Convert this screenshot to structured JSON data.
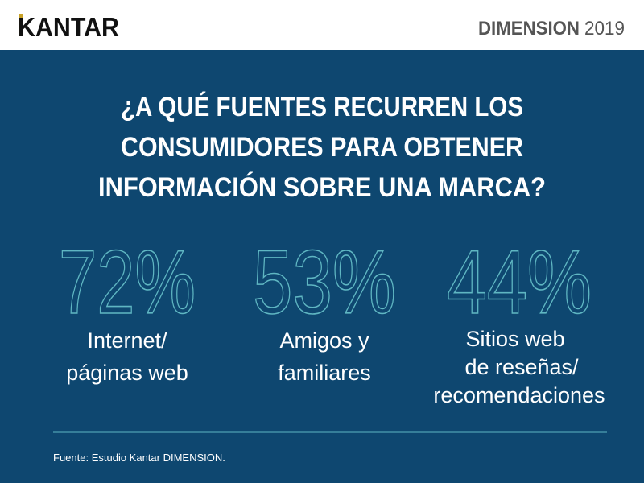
{
  "header": {
    "logo": "KANTAR",
    "brand": "DIMENSION",
    "year": "2019"
  },
  "title_lines": [
    "¿A QUÉ FUENTES RECURREN LOS",
    "CONSUMIDORES PARA OBTENER",
    "INFORMACIÓN SOBRE UNA MARCA?"
  ],
  "stats": [
    {
      "value": "72%",
      "label_lines": [
        "Internet/",
        "páginas web"
      ]
    },
    {
      "value": "53%",
      "label_lines": [
        "Amigos y",
        "familiares"
      ]
    },
    {
      "value": "44%",
      "label_lines": [
        "Sitios web",
        "de reseñas/",
        "recomendaciones"
      ]
    }
  ],
  "footer": "Fuente: Estudio Kantar DIMENSION."
}
